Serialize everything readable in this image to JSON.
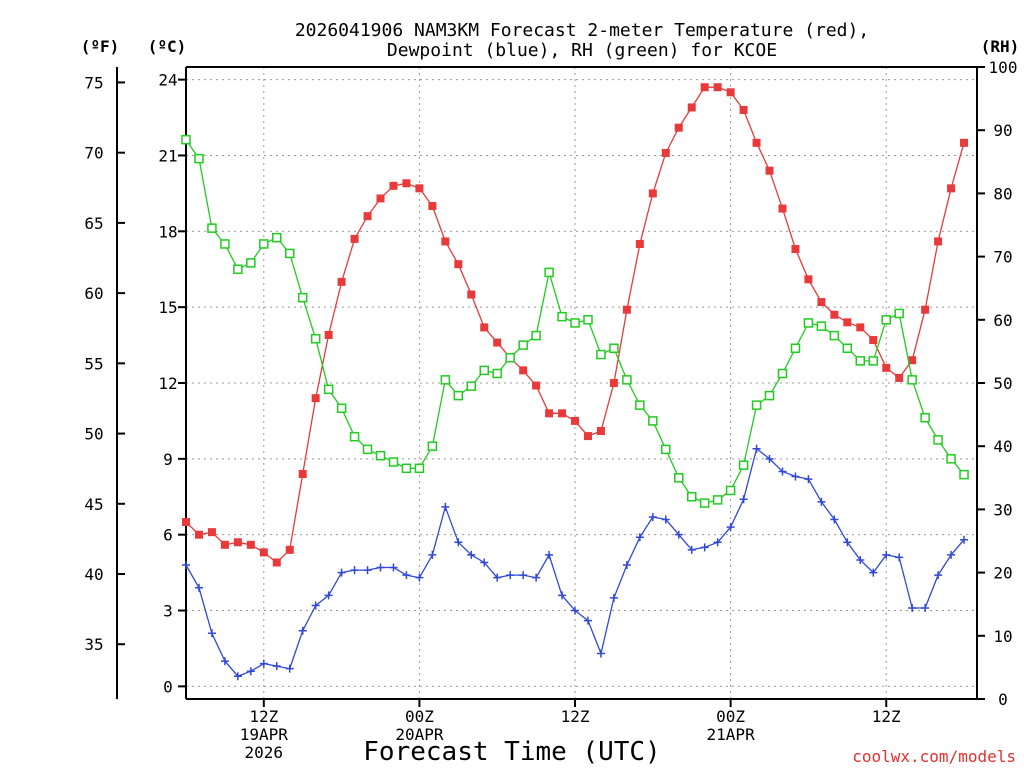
{
  "chart_data": {
    "type": "line",
    "title_line1": "2026041906 NAM3KM Forecast 2-meter Temperature (red),",
    "title_line2": "Dewpoint (blue), RH (green) for KCOE",
    "xlabel": "Forecast Time (UTC)",
    "credit": "coolwx.com/models",
    "units": {
      "left_f": "(ºF)",
      "left_c": "(ºC)",
      "right_rh": "(RH)"
    },
    "x_hours": {
      "start": 6,
      "step": 1,
      "end": 67
    },
    "x_ticks": [
      {
        "hour": 12,
        "lines": [
          "12Z",
          "19APR",
          "2026"
        ]
      },
      {
        "hour": 24,
        "lines": [
          "00Z",
          "20APR"
        ]
      },
      {
        "hour": 36,
        "lines": [
          "12Z"
        ]
      },
      {
        "hour": 48,
        "lines": [
          "00Z",
          "21APR"
        ]
      },
      {
        "hour": 60,
        "lines": [
          "12Z"
        ]
      }
    ],
    "c_axis": {
      "min": -0.5,
      "max": 24.5,
      "ticks": [
        0,
        3,
        6,
        9,
        12,
        15,
        18,
        21,
        24
      ]
    },
    "f_axis": {
      "ticks": [
        35,
        40,
        45,
        50,
        55,
        60,
        65,
        70,
        75
      ]
    },
    "rh_axis": {
      "min": 0,
      "max": 100,
      "ticks": [
        0,
        10,
        20,
        30,
        40,
        50,
        60,
        70,
        80,
        90,
        100
      ]
    },
    "colors": {
      "temperature": "#e83a3a",
      "dewpoint": "#3048d8",
      "rh": "#20cc20",
      "grid": "#999999"
    },
    "series": [
      {
        "name": "Temperature (°C)",
        "axis": "c",
        "values": [
          6.5,
          6.0,
          6.1,
          5.6,
          5.7,
          5.6,
          5.3,
          4.9,
          5.4,
          8.4,
          11.4,
          13.9,
          16.0,
          17.7,
          18.6,
          19.3,
          19.8,
          19.9,
          19.7,
          19.0,
          17.6,
          16.7,
          15.5,
          14.2,
          13.6,
          13.0,
          12.5,
          11.9,
          10.8,
          10.8,
          10.5,
          9.9,
          10.1,
          12.0,
          14.9,
          17.5,
          19.5,
          21.1,
          22.1,
          22.9,
          23.7,
          23.7,
          23.5,
          22.8,
          21.5,
          20.4,
          18.9,
          17.3,
          16.1,
          15.2,
          14.7,
          14.4,
          14.2,
          13.7,
          12.6,
          12.2,
          12.9,
          14.9,
          17.6,
          19.7,
          21.5
        ]
      },
      {
        "name": "Dewpoint (°C)",
        "axis": "c",
        "values": [
          4.8,
          3.9,
          2.1,
          1.0,
          0.4,
          0.6,
          0.9,
          0.8,
          0.7,
          2.2,
          3.2,
          3.6,
          4.5,
          4.6,
          4.6,
          4.7,
          4.7,
          4.4,
          4.3,
          5.2,
          7.1,
          5.7,
          5.2,
          4.9,
          4.3,
          4.4,
          4.4,
          4.3,
          5.2,
          3.6,
          3.0,
          2.6,
          1.3,
          3.5,
          4.8,
          5.9,
          6.7,
          6.6,
          6.0,
          5.4,
          5.5,
          5.7,
          6.3,
          7.4,
          9.4,
          9.0,
          8.5,
          8.3,
          8.2,
          7.3,
          6.6,
          5.7,
          5.0,
          4.5,
          5.2,
          5.1,
          3.1,
          3.1,
          4.4,
          5.2,
          5.8
        ]
      },
      {
        "name": "RH (%)",
        "axis": "rh",
        "values": [
          88.5,
          85.5,
          74.5,
          72.0,
          68.0,
          69.0,
          72.0,
          73.0,
          70.5,
          63.5,
          57.0,
          49.0,
          46.0,
          41.5,
          39.5,
          38.5,
          37.5,
          36.5,
          36.5,
          40.0,
          50.5,
          48.0,
          49.5,
          52.0,
          51.5,
          54.0,
          56.0,
          57.5,
          67.5,
          60.5,
          59.5,
          60.0,
          54.5,
          55.5,
          50.5,
          46.5,
          44.0,
          39.5,
          35.0,
          32.0,
          31.0,
          31.5,
          33.0,
          37.0,
          46.5,
          48.0,
          51.5,
          55.5,
          59.5,
          59.0,
          57.5,
          55.5,
          53.5,
          53.5,
          60.0,
          61.0,
          50.5,
          44.5,
          41.0,
          38.0,
          35.5
        ]
      }
    ]
  }
}
